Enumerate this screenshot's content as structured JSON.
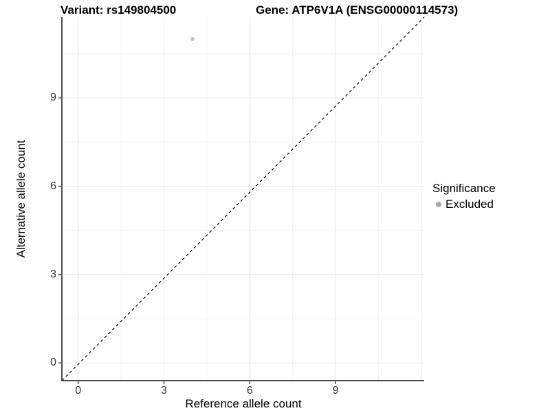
{
  "chart_data": {
    "type": "scatter",
    "titles": {
      "left": "Variant: rs149804500",
      "right": "Gene: ATP6V1A (ENSG00000114573)"
    },
    "xlabel": "Reference allele count",
    "ylabel": "Alternative allele count",
    "xticks": [
      0,
      3,
      6,
      9
    ],
    "yticks": [
      0,
      3,
      6,
      9
    ],
    "xlim": [
      -0.57,
      12.1
    ],
    "ylim": [
      -0.6,
      11.74
    ],
    "major_tick_step": 3,
    "minor_grid_step": 1.5,
    "grid": true,
    "points": [
      {
        "x": 4,
        "y": 11,
        "significance": "Excluded",
        "color": "#c2c2c2"
      }
    ],
    "identity_line": {
      "style": "dashed",
      "color": "#111111"
    },
    "legend": {
      "title": "Significance",
      "position": "right",
      "entries": [
        {
          "label": "Excluded",
          "color": "#a8a8a8"
        }
      ]
    },
    "colors": {
      "background": "#ffffff",
      "major_grid": "#e7e7e7",
      "minor_grid": "#f3f3f3",
      "axis_line": "#4d4d4d",
      "tick_label": "#333333",
      "title": "#000000"
    }
  }
}
